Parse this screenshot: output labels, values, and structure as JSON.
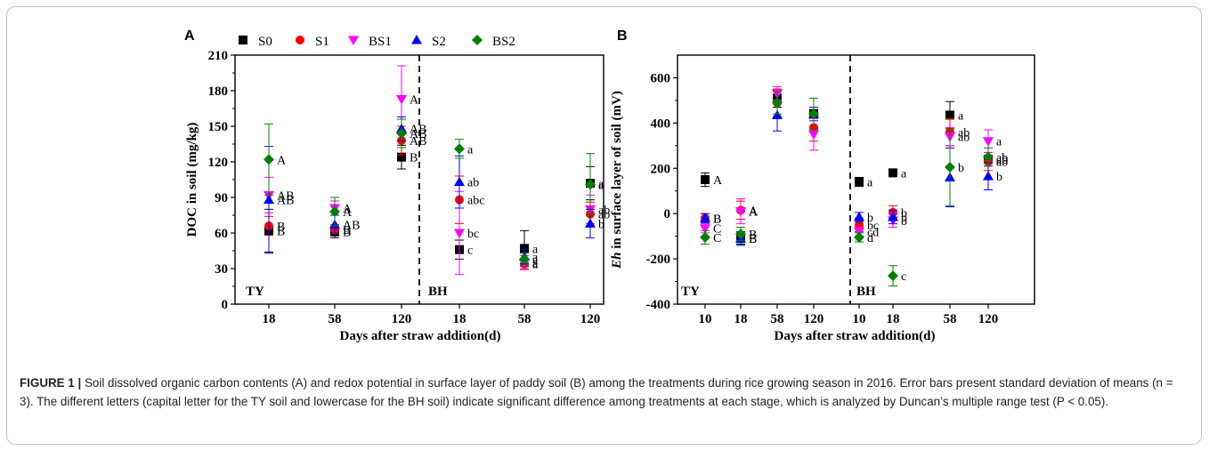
{
  "legend": [
    {
      "name": "S0",
      "color": "#000000",
      "shape": "square"
    },
    {
      "name": "S1",
      "color": "#ff0000",
      "shape": "circle"
    },
    {
      "name": "BS1",
      "color": "#ff00ff",
      "shape": "triangle-down"
    },
    {
      "name": "S2",
      "color": "#0000ff",
      "shape": "triangle-up"
    },
    {
      "name": "BS2",
      "color": "#008000",
      "shape": "diamond"
    }
  ],
  "caption": {
    "lead": "FIGURE 1 |",
    "text": "Soil dissolved organic carbon contents (A) and redox potential in surface layer of paddy soil (B) among the treatments during rice growing season in 2016. Error bars present standard deviation of means (n = 3). The different letters (capital letter for the TY soil and lowercase for the BH soil) indicate significant difference among treatments at each stage, which is analyzed by Duncan’s multiple range test (P < 0.05)."
  },
  "chart_data": [
    {
      "panel": "A",
      "type": "scatter",
      "xlabel": "Days after straw addition(d)",
      "ylabel": "DOC in soil (mg/kg)",
      "ylim": [
        0,
        210
      ],
      "yticks": [
        0,
        30,
        60,
        90,
        120,
        150,
        180,
        210
      ],
      "groups": [
        "TY",
        "BH"
      ],
      "categories": [
        "18",
        "58",
        "120",
        "18",
        "58",
        "120"
      ],
      "series": [
        {
          "name": "S0",
          "values": [
            62,
            61,
            124,
            46,
            47,
            102
          ],
          "err": [
            18,
            5,
            10,
            8,
            15,
            14
          ],
          "letters": [
            "B",
            "B",
            "B",
            "c",
            "a",
            "a"
          ]
        },
        {
          "name": "S1",
          "values": [
            66,
            63,
            138,
            88,
            34,
            76
          ],
          "err": [
            8,
            4,
            12,
            20,
            4,
            10
          ],
          "letters": [
            "B",
            "B",
            "AB",
            "abc",
            "a",
            "ab"
          ]
        },
        {
          "name": "BS1",
          "values": [
            92,
            81,
            173,
            60,
            35,
            80
          ],
          "err": [
            15,
            6,
            28,
            35,
            6,
            12
          ],
          "letters": [
            "AB",
            "A",
            "A",
            "bc",
            "a",
            "ab"
          ]
        },
        {
          "name": "S2",
          "values": [
            88,
            67,
            148,
            103,
            40,
            68
          ],
          "err": [
            45,
            8,
            10,
            22,
            6,
            12
          ],
          "letters": [
            "AB",
            "AB",
            "AB",
            "ab",
            "a",
            "b"
          ]
        },
        {
          "name": "BS2",
          "values": [
            122,
            78,
            144,
            131,
            38,
            101
          ],
          "err": [
            30,
            12,
            12,
            8,
            5,
            26
          ],
          "letters": [
            "A",
            "A",
            "AB",
            "a",
            "a",
            "a"
          ]
        }
      ]
    },
    {
      "panel": "B",
      "type": "scatter",
      "xlabel": "Days after straw addition(d)",
      "ylabel_italic": "Eh",
      "ylabel": "in surface layer of soil (mV)",
      "ylim": [
        -400,
        700
      ],
      "yticks": [
        -400,
        -200,
        0,
        200,
        400,
        600
      ],
      "groups": [
        "TY",
        "BH"
      ],
      "categories": [
        "10",
        "18",
        "58",
        "120",
        "10",
        "18",
        "58",
        "120"
      ],
      "series": [
        {
          "name": "S0",
          "values": [
            150,
            -110,
            510,
            440,
            140,
            180,
            435,
            240
          ],
          "err": [
            30,
            25,
            40,
            20,
            20,
            10,
            60,
            30
          ],
          "letters": [
            "A",
            "B",
            "",
            "",
            "a",
            "a",
            "a",
            "ab"
          ]
        },
        {
          "name": "S1",
          "values": [
            -20,
            15,
            490,
            380,
            -50,
            5,
            360,
            230
          ],
          "err": [
            20,
            40,
            60,
            60,
            30,
            30,
            60,
            40
          ],
          "letters": [
            "B",
            "A",
            "",
            "",
            "bc",
            "b",
            "ab",
            "ab"
          ]
        },
        {
          "name": "BS1",
          "values": [
            -65,
            10,
            530,
            350,
            -80,
            -30,
            340,
            320
          ],
          "err": [
            20,
            55,
            30,
            70,
            20,
            30,
            40,
            50
          ],
          "letters": [
            "C",
            "A",
            "",
            "",
            "cd",
            "b",
            "ab",
            "a"
          ]
        },
        {
          "name": "S2",
          "values": [
            -20,
            -110,
            435,
            440,
            -15,
            -15,
            160,
            165
          ],
          "err": [
            20,
            30,
            70,
            30,
            20,
            30,
            130,
            60
          ],
          "letters": [
            "B",
            "B",
            "",
            "",
            "b",
            "b",
            "",
            "b"
          ]
        },
        {
          "name": "BS2",
          "values": [
            -105,
            -90,
            490,
            440,
            -105,
            -275,
            205,
            250
          ],
          "err": [
            30,
            30,
            50,
            70,
            20,
            45,
            170,
            40
          ],
          "letters": [
            "C",
            "B",
            "",
            "",
            "d",
            "c",
            "b",
            "ab"
          ]
        }
      ]
    }
  ]
}
